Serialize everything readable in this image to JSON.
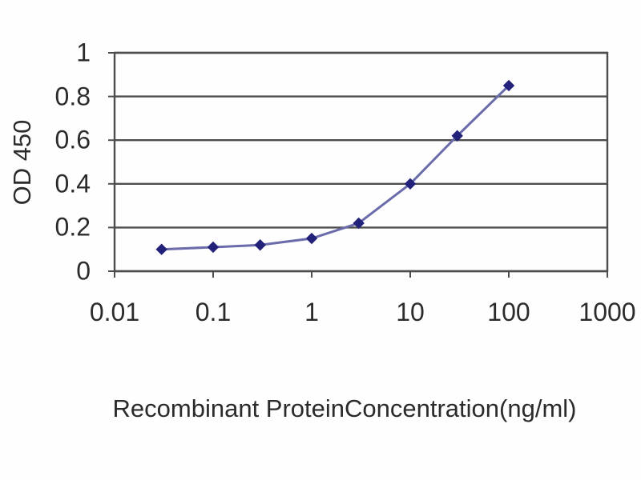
{
  "chart_data": {
    "type": "line",
    "title": "",
    "xlabel": "Recombinant ProteinConcentration(ng/ml)",
    "ylabel": "OD 450",
    "x_scale": "log",
    "xlim": [
      0.01,
      1000
    ],
    "ylim": [
      0,
      1
    ],
    "xticks": [
      0.01,
      0.1,
      1,
      10,
      100,
      1000
    ],
    "xtick_labels": [
      "0.01",
      "0.1",
      "1",
      "10",
      "100",
      "1000"
    ],
    "yticks": [
      0,
      0.2,
      0.4,
      0.6,
      0.8,
      1
    ],
    "ytick_labels": [
      "0",
      "0.2",
      "0.4",
      "0.6",
      "0.8",
      "1"
    ],
    "grid": "horizontal",
    "legend": "none",
    "marker": "diamond",
    "series": [
      {
        "name": "OD 450",
        "x": [
          0.03,
          0.1,
          0.3,
          1,
          3,
          10,
          30,
          100
        ],
        "y": [
          0.1,
          0.11,
          0.12,
          0.15,
          0.22,
          0.4,
          0.62,
          0.85
        ]
      }
    ],
    "colors": {
      "line": "#6b6bab",
      "marker": "#22227a",
      "grid": "#4d4d4d",
      "frame": "#4d4d4d",
      "text": "#2b2b2b",
      "background": "#fefefe"
    }
  }
}
